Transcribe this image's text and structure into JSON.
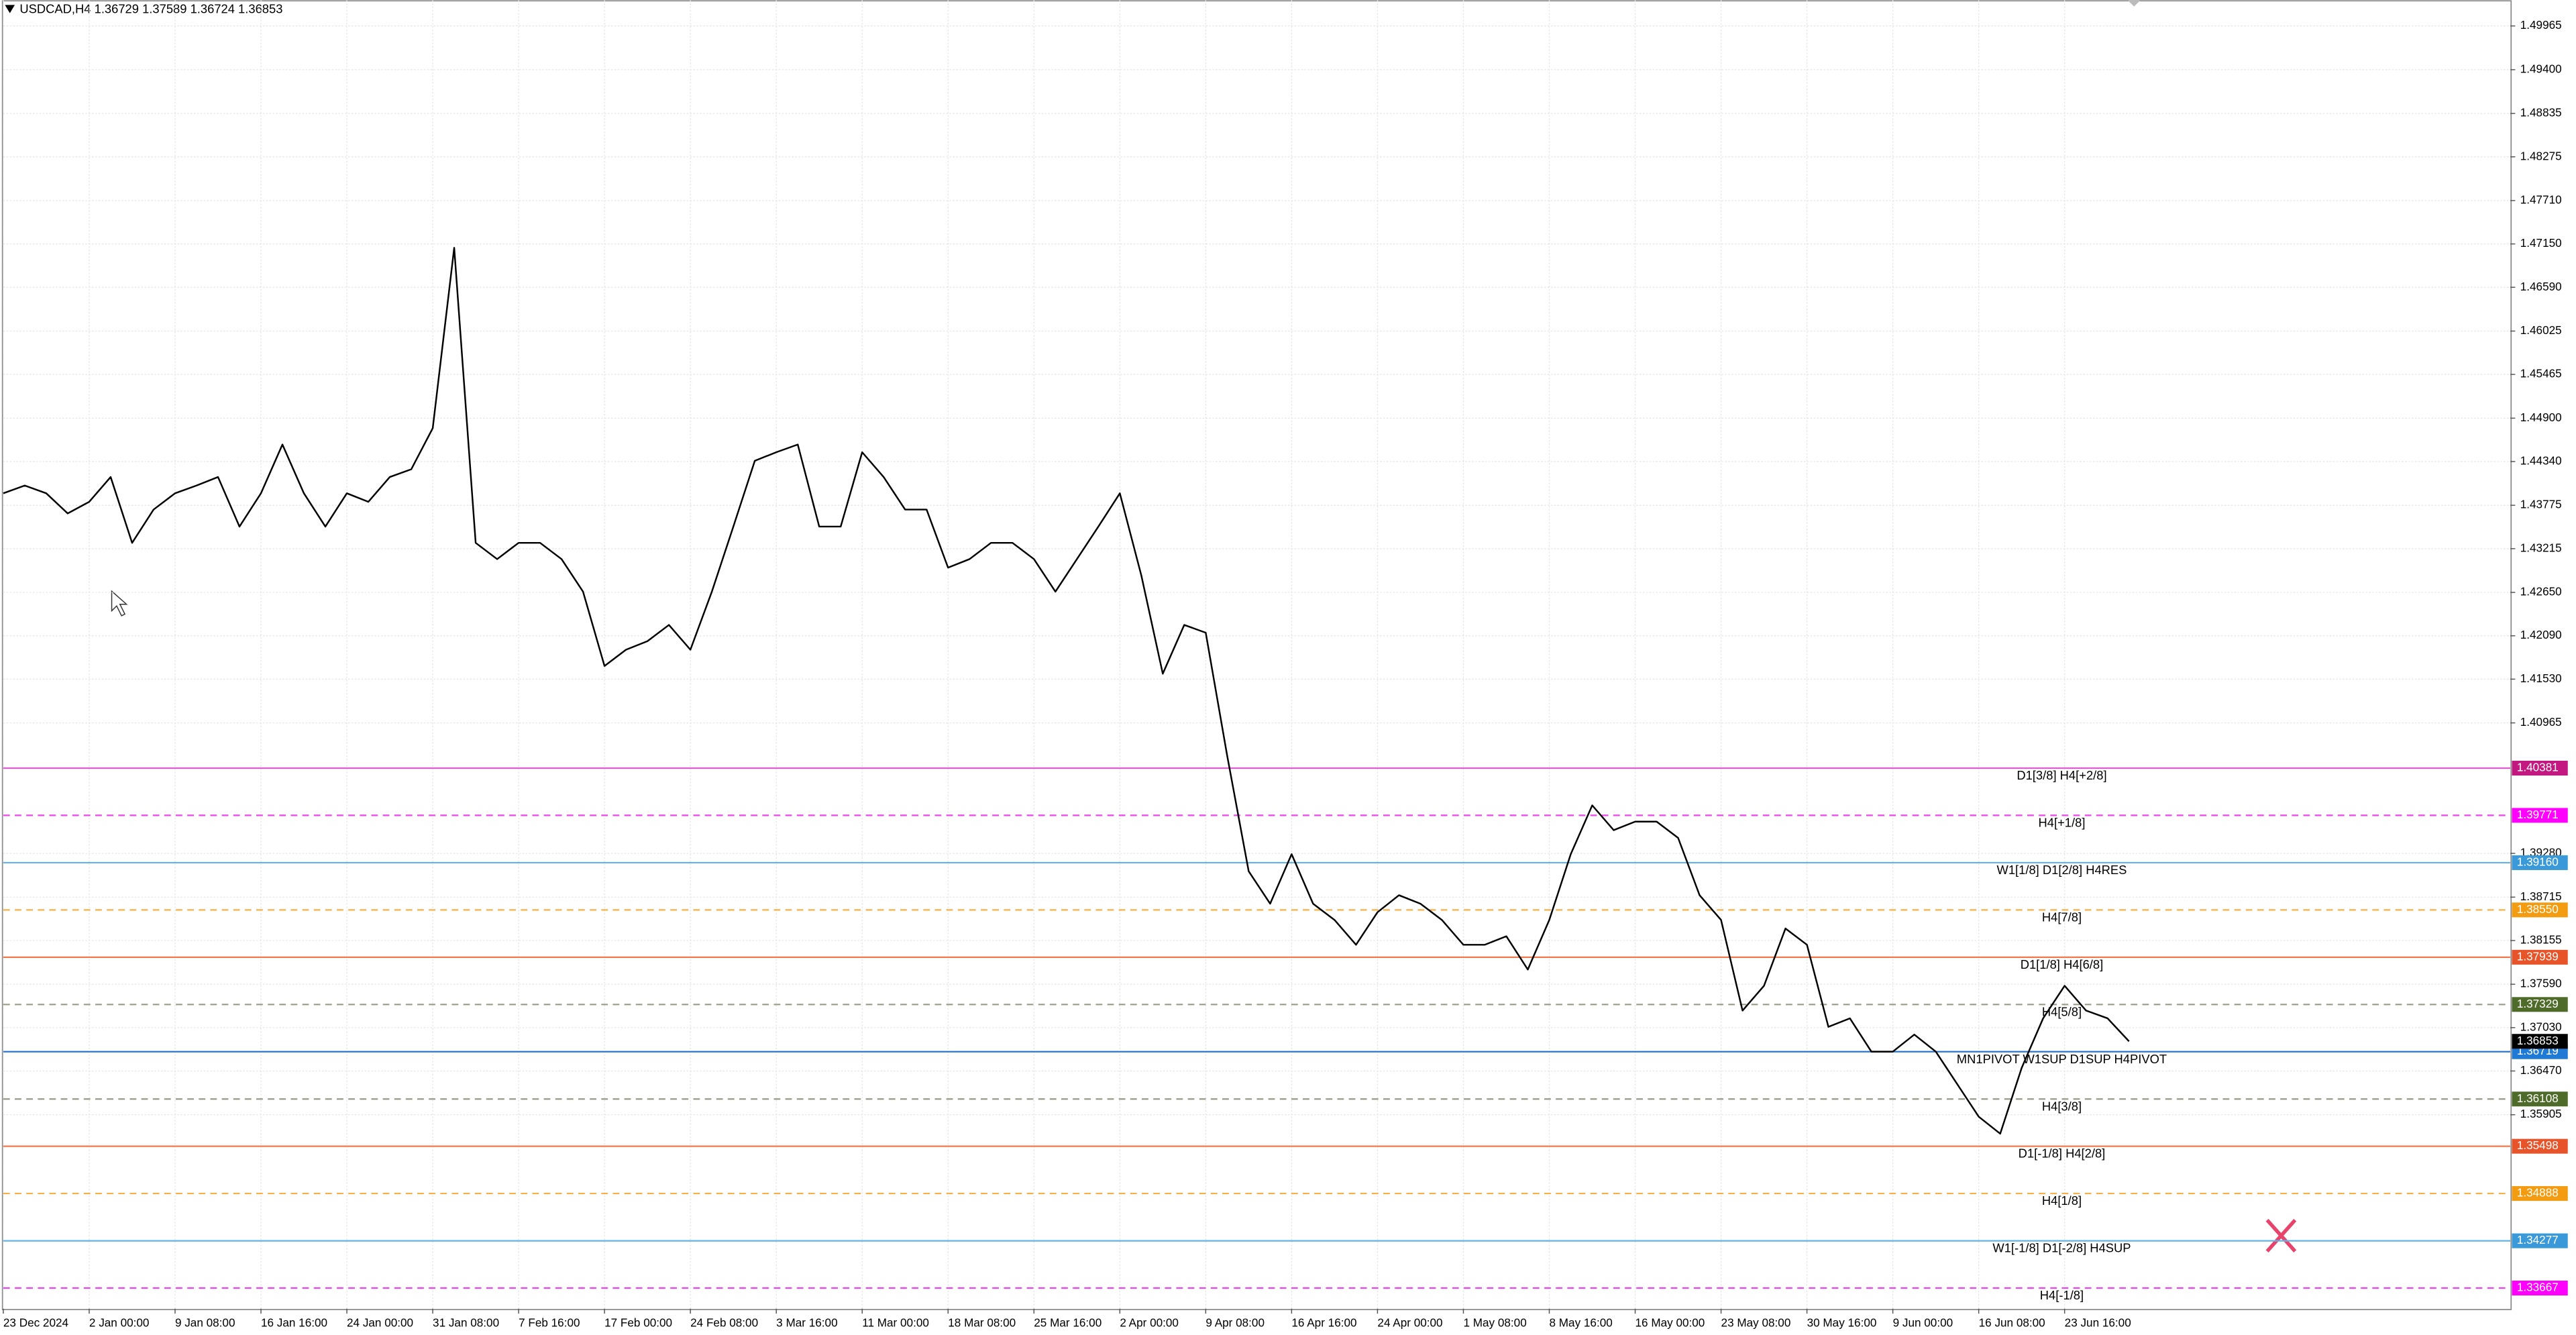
{
  "chart_data": {
    "type": "line",
    "title": "USDCAD,H4  1.36729 1.37589 1.36724 1.36853",
    "categories": [
      "23 Dec 2024",
      null,
      null,
      null,
      "2 Jan 00:00",
      null,
      null,
      null,
      "9 Jan 08:00",
      null,
      null,
      null,
      "16 Jan 16:00",
      null,
      null,
      null,
      "24 Jan 00:00",
      null,
      null,
      null,
      "31 Jan 08:00",
      null,
      null,
      null,
      "7 Feb 16:00",
      null,
      null,
      null,
      "17 Feb 00:00",
      null,
      null,
      null,
      "24 Feb 08:00",
      null,
      null,
      null,
      "3 Mar 16:00",
      null,
      null,
      null,
      "11 Mar 00:00",
      null,
      null,
      null,
      "18 Mar 08:00",
      null,
      null,
      null,
      "25 Mar 16:00",
      null,
      null,
      null,
      "2 Apr 00:00",
      null,
      null,
      null,
      "9 Apr 08:00",
      null,
      null,
      null,
      "16 Apr 16:00",
      null,
      null,
      null,
      "24 Apr 00:00",
      null,
      null,
      null,
      "1 May 08:00",
      null,
      null,
      null,
      "8 May 16:00",
      null,
      null,
      null,
      "16 May 00:00",
      null,
      null,
      null,
      "23 May 08:00",
      null,
      null,
      null,
      "30 May 16:00",
      null,
      null,
      null,
      "9 Jun 00:00",
      null,
      null,
      null,
      "16 Jun 08:00",
      null,
      null,
      null,
      "23 Jun 16:00",
      null,
      null,
      null
    ],
    "values": [
      1.4393,
      1.4403,
      1.4393,
      1.4367,
      1.4382,
      1.4414,
      1.4329,
      1.4372,
      1.4393,
      1.4403,
      1.4414,
      1.435,
      1.4393,
      1.4456,
      1.4393,
      1.435,
      1.4393,
      1.4382,
      1.4414,
      1.4424,
      1.4477,
      1.471,
      1.4329,
      1.4308,
      1.4329,
      1.4329,
      1.4308,
      1.4266,
      1.417,
      1.4191,
      1.4202,
      1.4223,
      1.4191,
      1.4266,
      1.435,
      1.4435,
      1.4446,
      1.4456,
      1.435,
      1.435,
      1.4446,
      1.4414,
      1.4372,
      1.4372,
      1.4297,
      1.4308,
      1.4329,
      1.4329,
      1.4308,
      1.4266,
      1.4308,
      1.435,
      1.4393,
      1.4287,
      1.416,
      1.4223,
      1.4213,
      1.4054,
      1.3905,
      1.3863,
      1.3927,
      1.3863,
      1.3842,
      1.381,
      1.3852,
      1.3874,
      1.3863,
      1.3842,
      1.381,
      1.381,
      1.3821,
      1.3778,
      1.3842,
      1.3927,
      1.399,
      1.3958,
      1.3969,
      1.3969,
      1.3948,
      1.3874,
      1.3842,
      1.3725,
      1.3757,
      1.3831,
      1.381,
      1.3704,
      1.3715,
      1.3672,
      1.3672,
      1.3694,
      1.3672,
      1.363,
      1.3588,
      1.3566,
      1.3651,
      1.3715,
      1.3757,
      1.3725,
      1.3715,
      1.36853
    ],
    "color": "#000000",
    "ylim": [
      1.334,
      1.503
    ],
    "yticks": [
      1.49965,
      {
        "value": 1.494,
        "label": "1.49400"
      },
      1.48835,
      1.48275,
      {
        "value": 1.4771,
        "label": "1.47710"
      },
      {
        "value": 1.4715,
        "label": "1.47150"
      },
      {
        "value": 1.4659,
        "label": "1.46590"
      },
      1.46025,
      1.45465,
      {
        "value": 1.449,
        "label": "1.44900"
      },
      {
        "value": 1.4434,
        "label": "1.44340"
      },
      1.43775,
      1.43215,
      {
        "value": 1.4265,
        "label": "1.42650"
      },
      {
        "value": 1.4209,
        "label": "1.42090"
      },
      {
        "value": 1.4153,
        "label": "1.41530"
      },
      1.40965,
      {
        "value": 1.3928,
        "label": "1.39280"
      },
      1.38715,
      1.38155,
      {
        "value": 1.3759,
        "label": "1.37590"
      },
      {
        "value": 1.3703,
        "label": "1.37030"
      },
      {
        "value": 1.3647,
        "label": "1.36470"
      },
      1.35905
    ],
    "grid": true,
    "levels": [
      {
        "name": "D1[3/8] H4[+2/8]",
        "value": 1.40381,
        "color": "#e35bd0",
        "badge_color": "#c2187f",
        "dashed": false
      },
      {
        "name": "H4[+1/8]",
        "value": 1.39771,
        "color": "#ee44ee",
        "badge_color": "#ff00ff",
        "dashed": true
      },
      {
        "name": "W1[1/8] D1[2/8] H4RES",
        "value": 1.3916,
        "value_label": "1.39160",
        "color": "#62b4e8",
        "badge_color": "#3a9ad9",
        "dashed": false
      },
      {
        "name": "H4[7/8]",
        "value": 1.3855,
        "value_label": "1.38550",
        "color": "#f5b04a",
        "badge_color": "#f39c12",
        "dashed": true
      },
      {
        "name": "D1[1/8] H4[6/8]",
        "value": 1.37939,
        "color": "#f07a50",
        "badge_color": "#e8542a",
        "dashed": false
      },
      {
        "name": "H4[5/8]",
        "value": 1.37329,
        "color": "#9a9a88",
        "badge_color": "#4f6b2a",
        "dashed": true
      },
      {
        "name": "MN1PIVOT W1SUP D1SUP H4PIVOT",
        "value": 1.36719,
        "color": "#1f6fd6",
        "badge_color": "#1f7ad6",
        "dashed": false
      },
      {
        "name": "H4[3/8]",
        "value": 1.36108,
        "color": "#9a9a88",
        "badge_color": "#4f6b2a",
        "dashed": true
      },
      {
        "name": "D1[-1/8] H4[2/8]",
        "value": 1.35498,
        "color": "#f07a50",
        "badge_color": "#e8542a",
        "dashed": false
      },
      {
        "name": "H4[1/8]",
        "value": 1.34888,
        "color": "#f5b04a",
        "badge_color": "#f39c12",
        "dashed": true
      },
      {
        "name": "W1[-1/8] D1[-2/8] H4SUP",
        "value": 1.34277,
        "color": "#62b4e8",
        "badge_color": "#3a9ad9",
        "dashed": false
      },
      {
        "name": "H4[-1/8]",
        "value": 1.33667,
        "color": "#ee44ee",
        "badge_color": "#ff00ff",
        "dashed": true
      }
    ],
    "last_price": 1.36853
  }
}
